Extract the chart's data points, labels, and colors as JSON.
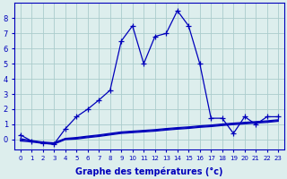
{
  "xlabel": "Graphe des températures (°c)",
  "background_color": "#ddeeed",
  "grid_color": "#aacccc",
  "line_color": "#0000bb",
  "xlim_min": -0.5,
  "xlim_max": 23.5,
  "ylim_min": -0.65,
  "ylim_max": 9.0,
  "xticks": [
    0,
    1,
    2,
    3,
    4,
    5,
    6,
    7,
    8,
    9,
    10,
    11,
    12,
    13,
    14,
    15,
    16,
    17,
    18,
    19,
    20,
    21,
    22,
    23
  ],
  "yticks": [
    0,
    1,
    2,
    3,
    4,
    5,
    6,
    7,
    8
  ],
  "main_x": [
    0,
    1,
    2,
    3,
    4,
    5,
    6,
    7,
    8,
    9,
    10,
    11,
    12,
    13,
    14,
    15,
    16,
    17,
    18,
    19,
    20,
    21,
    22,
    23
  ],
  "main_y": [
    0.3,
    -0.1,
    -0.25,
    -0.3,
    0.7,
    1.5,
    2.0,
    2.6,
    3.25,
    6.5,
    7.5,
    5.0,
    6.8,
    7.0,
    8.5,
    7.5,
    5.0,
    1.4,
    1.4,
    0.4,
    1.5,
    1.0,
    1.5,
    1.5
  ],
  "flat1_x": [
    0,
    1,
    2,
    3,
    4,
    5,
    6,
    7,
    8,
    9,
    10,
    11,
    12,
    13,
    14,
    15,
    16,
    17,
    18,
    19,
    20,
    21,
    22,
    23
  ],
  "flat1_y": [
    0.05,
    -0.07,
    -0.17,
    -0.22,
    0.07,
    0.13,
    0.22,
    0.3,
    0.4,
    0.5,
    0.55,
    0.6,
    0.65,
    0.72,
    0.78,
    0.83,
    0.9,
    0.95,
    1.02,
    1.08,
    1.13,
    1.18,
    1.23,
    1.3
  ],
  "flat2_x": [
    0,
    1,
    2,
    3,
    4,
    5,
    6,
    7,
    8,
    9,
    10,
    11,
    12,
    13,
    14,
    15,
    16,
    17,
    18,
    19,
    20,
    21,
    22,
    23
  ],
  "flat2_y": [
    -0.03,
    -0.11,
    -0.21,
    -0.26,
    0.03,
    0.08,
    0.17,
    0.25,
    0.35,
    0.45,
    0.5,
    0.55,
    0.6,
    0.67,
    0.73,
    0.78,
    0.85,
    0.9,
    0.97,
    1.03,
    1.08,
    1.13,
    1.18,
    1.25
  ],
  "flat3_x": [
    0,
    1,
    2,
    3,
    4,
    5,
    6,
    7,
    8,
    9,
    10,
    11,
    12,
    13,
    14,
    15,
    16,
    17,
    18,
    19,
    20,
    21,
    22,
    23
  ],
  "flat3_y": [
    -0.1,
    -0.16,
    -0.26,
    -0.31,
    -0.01,
    0.03,
    0.12,
    0.2,
    0.3,
    0.4,
    0.45,
    0.5,
    0.55,
    0.62,
    0.68,
    0.73,
    0.8,
    0.85,
    0.92,
    0.98,
    1.03,
    1.08,
    1.13,
    1.2
  ]
}
